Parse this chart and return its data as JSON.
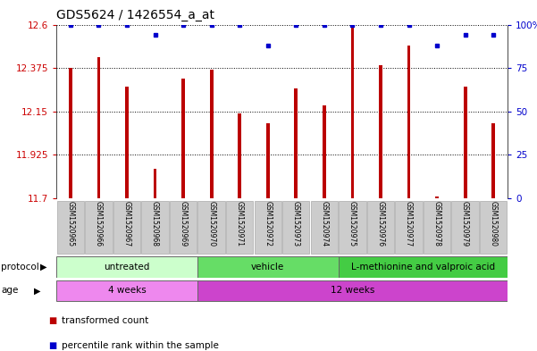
{
  "title": "GDS5624 / 1426554_a_at",
  "samples": [
    "GSM1520965",
    "GSM1520966",
    "GSM1520967",
    "GSM1520968",
    "GSM1520969",
    "GSM1520970",
    "GSM1520971",
    "GSM1520972",
    "GSM1520973",
    "GSM1520974",
    "GSM1520975",
    "GSM1520976",
    "GSM1520977",
    "GSM1520978",
    "GSM1520979",
    "GSM1520980"
  ],
  "bar_values": [
    12.375,
    12.43,
    12.28,
    11.855,
    12.32,
    12.365,
    12.14,
    12.09,
    12.27,
    12.18,
    12.595,
    12.39,
    12.49,
    11.71,
    12.28,
    12.09
  ],
  "percentile_values": [
    100,
    100,
    100,
    94,
    100,
    100,
    100,
    88,
    100,
    100,
    100,
    100,
    100,
    88,
    94,
    94
  ],
  "ylim_left": [
    11.7,
    12.6
  ],
  "yticks_left": [
    11.7,
    11.925,
    12.15,
    12.375,
    12.6
  ],
  "ytick_labels_left": [
    "11.7",
    "11.925",
    "12.15",
    "12.375",
    "12.6"
  ],
  "ylim_right": [
    0,
    100
  ],
  "yticks_right": [
    0,
    25,
    50,
    75,
    100
  ],
  "ytick_labels_right": [
    "0",
    "25",
    "50",
    "75",
    "100%"
  ],
  "bar_color": "#bb0000",
  "dot_color": "#0000cc",
  "bg_color": "#ffffff",
  "protocol_groups": [
    {
      "label": "untreated",
      "start": 0,
      "end": 4,
      "color": "#ccffcc"
    },
    {
      "label": "vehicle",
      "start": 5,
      "end": 9,
      "color": "#66dd66"
    },
    {
      "label": "L-methionine and valproic acid",
      "start": 10,
      "end": 15,
      "color": "#44cc44"
    }
  ],
  "age_groups": [
    {
      "label": "4 weeks",
      "start": 0,
      "end": 4,
      "color": "#ee88ee"
    },
    {
      "label": "12 weeks",
      "start": 5,
      "end": 15,
      "color": "#cc44cc"
    }
  ],
  "legend_items": [
    {
      "label": "transformed count",
      "color": "#bb0000"
    },
    {
      "label": "percentile rank within the sample",
      "color": "#0000cc"
    }
  ],
  "protocol_label": "protocol",
  "age_label": "age",
  "tick_label_color_left": "#cc0000",
  "tick_label_color_right": "#0000cc",
  "title_fontsize": 10,
  "tick_fontsize": 7.5,
  "bar_width": 0.12
}
